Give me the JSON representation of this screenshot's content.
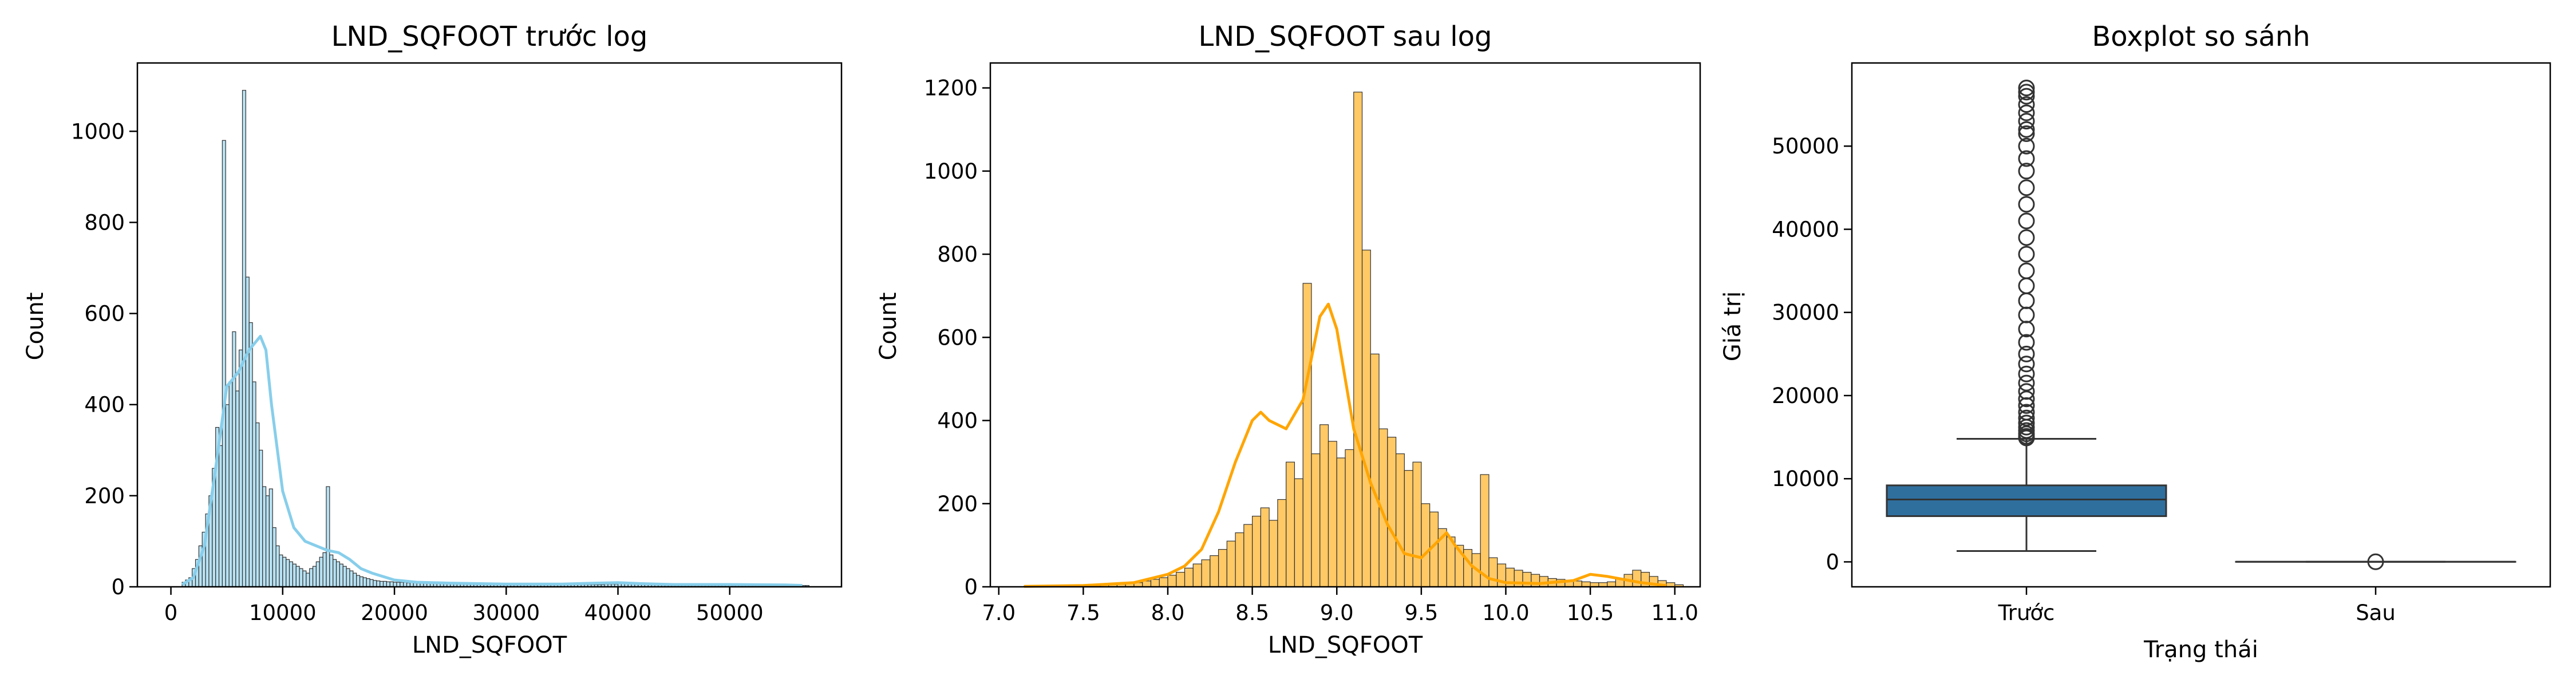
{
  "colors": {
    "hist1": "#87ceeb",
    "hist2": "#ffa500",
    "box": "#2f6f9e",
    "edge": "#333333",
    "axis": "#000000"
  },
  "chart_data": [
    {
      "type": "bar",
      "title": "LND_SQFOOT trước log",
      "xlabel": "LND_SQFOOT",
      "ylabel": "Count",
      "xlim": [
        -3000,
        60000
      ],
      "ylim": [
        0,
        1150
      ],
      "xticks": [
        0,
        10000,
        20000,
        30000,
        40000,
        50000
      ],
      "xtick_labels": [
        "0",
        "10000",
        "20000",
        "30000",
        "40000",
        "50000"
      ],
      "yticks": [
        0,
        200,
        400,
        600,
        800,
        1000
      ],
      "ytick_labels": [
        "0",
        "200",
        "400",
        "600",
        "800",
        "1000"
      ],
      "x_start": 1000,
      "bin_width": 300,
      "values": [
        10,
        15,
        20,
        40,
        60,
        90,
        120,
        160,
        200,
        260,
        350,
        310,
        980,
        400,
        450,
        560,
        430,
        520,
        1090,
        680,
        580,
        450,
        360,
        300,
        220,
        200,
        215,
        130,
        90,
        70,
        65,
        60,
        55,
        50,
        45,
        40,
        35,
        30,
        40,
        45,
        55,
        65,
        75,
        220,
        70,
        60,
        55,
        50,
        45,
        40,
        35,
        30,
        25,
        22,
        20,
        18,
        16,
        14,
        13,
        12,
        12,
        11,
        11,
        10,
        10,
        10,
        10,
        9,
        9,
        9,
        9,
        9,
        9,
        9,
        8,
        8,
        8,
        8,
        8,
        8,
        8,
        7,
        7,
        7,
        7,
        7,
        7,
        7,
        7,
        6,
        6,
        6,
        6,
        6,
        6,
        6,
        6,
        6,
        6,
        5,
        5,
        5,
        5,
        5,
        5,
        5,
        5,
        5,
        5,
        5,
        5,
        5,
        5,
        5,
        5,
        5,
        5,
        5,
        5,
        5,
        5,
        5,
        5,
        5,
        5,
        5,
        6,
        6,
        6,
        6,
        7,
        7,
        7,
        8,
        8,
        8,
        8,
        7,
        7,
        6,
        6,
        6,
        5,
        5,
        5,
        5,
        5,
        5,
        5,
        5,
        5,
        5,
        4,
        4,
        4,
        4,
        4,
        4,
        4,
        4,
        4,
        4,
        4,
        4,
        4,
        4,
        4,
        4,
        4,
        4,
        4,
        4,
        4,
        4,
        3,
        3,
        3,
        3,
        3,
        3,
        3,
        3,
        3,
        3,
        3,
        3,
        3
      ],
      "kde": [
        [
          1000,
          5
        ],
        [
          2000,
          20
        ],
        [
          3000,
          90
        ],
        [
          4000,
          260
        ],
        [
          5000,
          440
        ],
        [
          6000,
          470
        ],
        [
          7000,
          520
        ],
        [
          8000,
          550
        ],
        [
          8500,
          520
        ],
        [
          9000,
          400
        ],
        [
          10000,
          210
        ],
        [
          11000,
          130
        ],
        [
          12000,
          100
        ],
        [
          13000,
          90
        ],
        [
          14000,
          80
        ],
        [
          15000,
          75
        ],
        [
          16000,
          60
        ],
        [
          17000,
          40
        ],
        [
          18000,
          30
        ],
        [
          20000,
          15
        ],
        [
          22000,
          10
        ],
        [
          25000,
          8
        ],
        [
          30000,
          6
        ],
        [
          35000,
          6
        ],
        [
          38000,
          8
        ],
        [
          40000,
          9
        ],
        [
          42000,
          7
        ],
        [
          45000,
          5
        ],
        [
          50000,
          5
        ],
        [
          55000,
          4
        ],
        [
          56500,
          3
        ]
      ]
    },
    {
      "type": "bar",
      "title": "LND_SQFOOT sau log",
      "xlabel": "LND_SQFOOT",
      "ylabel": "Count",
      "xlim": [
        6.95,
        11.15
      ],
      "ylim": [
        0,
        1260
      ],
      "xticks": [
        7.0,
        7.5,
        8.0,
        8.5,
        9.0,
        9.5,
        10.0,
        10.5,
        11.0
      ],
      "xtick_labels": [
        "7.0",
        "7.5",
        "8.0",
        "8.5",
        "9.0",
        "9.5",
        "10.0",
        "10.5",
        "11.0"
      ],
      "yticks": [
        0,
        200,
        400,
        600,
        800,
        1000,
        1200
      ],
      "ytick_labels": [
        "0",
        "200",
        "400",
        "600",
        "800",
        "1000",
        "1200"
      ],
      "x_start": 7.15,
      "bin_width": 0.05,
      "values": [
        2,
        2,
        2,
        3,
        3,
        3,
        3,
        4,
        4,
        5,
        5,
        6,
        8,
        10,
        14,
        18,
        22,
        28,
        35,
        45,
        55,
        65,
        75,
        90,
        110,
        130,
        150,
        170,
        190,
        160,
        210,
        300,
        260,
        730,
        320,
        390,
        350,
        310,
        330,
        1190,
        810,
        560,
        380,
        360,
        320,
        280,
        300,
        200,
        180,
        140,
        120,
        100,
        90,
        80,
        270,
        70,
        55,
        45,
        40,
        35,
        30,
        25,
        20,
        18,
        16,
        14,
        12,
        10,
        10,
        12,
        20,
        30,
        40,
        35,
        25,
        15,
        10,
        5
      ],
      "kde": [
        [
          7.15,
          1
        ],
        [
          7.5,
          3
        ],
        [
          7.8,
          10
        ],
        [
          8.0,
          30
        ],
        [
          8.1,
          50
        ],
        [
          8.2,
          90
        ],
        [
          8.3,
          180
        ],
        [
          8.4,
          300
        ],
        [
          8.5,
          400
        ],
        [
          8.55,
          420
        ],
        [
          8.6,
          400
        ],
        [
          8.7,
          380
        ],
        [
          8.8,
          450
        ],
        [
          8.9,
          650
        ],
        [
          8.95,
          680
        ],
        [
          9.0,
          620
        ],
        [
          9.05,
          500
        ],
        [
          9.1,
          380
        ],
        [
          9.2,
          250
        ],
        [
          9.3,
          150
        ],
        [
          9.4,
          80
        ],
        [
          9.5,
          70
        ],
        [
          9.6,
          110
        ],
        [
          9.65,
          130
        ],
        [
          9.7,
          100
        ],
        [
          9.8,
          50
        ],
        [
          9.9,
          20
        ],
        [
          10.0,
          10
        ],
        [
          10.2,
          8
        ],
        [
          10.4,
          15
        ],
        [
          10.5,
          30
        ],
        [
          10.6,
          25
        ],
        [
          10.8,
          10
        ],
        [
          10.95,
          3
        ]
      ]
    },
    {
      "type": "box",
      "title": "Boxplot so sánh",
      "xlabel": "Trạng thái",
      "ylabel": "Giá trị",
      "ylim": [
        -3000,
        60000
      ],
      "yticks": [
        0,
        10000,
        20000,
        30000,
        40000,
        50000
      ],
      "ytick_labels": [
        "0",
        "10000",
        "20000",
        "30000",
        "40000",
        "50000"
      ],
      "categories": [
        "Trước",
        "Sau"
      ],
      "boxes": [
        {
          "name": "Trước",
          "whisker_low": 1300,
          "q1": 5500,
          "median": 7500,
          "q3": 9200,
          "whisker_high": 14800,
          "outliers": [
            14900,
            15100,
            15400,
            15800,
            16200,
            16700,
            17300,
            18000,
            18800,
            19600,
            20500,
            21500,
            22600,
            23800,
            25000,
            26400,
            28000,
            29700,
            31400,
            33200,
            35000,
            37000,
            39000,
            41000,
            43000,
            45000,
            47000,
            48500,
            50000,
            51500,
            52000,
            53000,
            54000,
            55000,
            56000,
            56500,
            57000
          ]
        },
        {
          "name": "Sau",
          "whisker_low": 7.1,
          "q1": 8.5,
          "median": 8.9,
          "q3": 9.2,
          "whisker_high": 10.9,
          "outliers": []
        }
      ]
    }
  ]
}
